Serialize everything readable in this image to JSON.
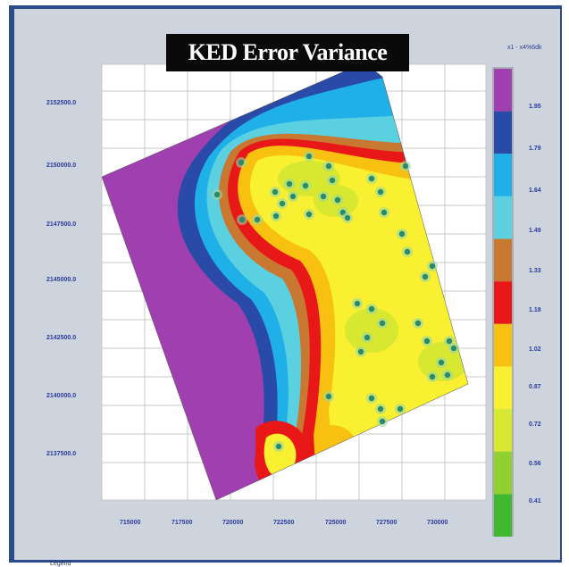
{
  "window": {
    "title": "KED Error Variance",
    "footer_label": "Legend"
  },
  "legend": {
    "title": "x1 - x4%6dk",
    "items": [
      {
        "label": "1.95",
        "color": "#a040b0"
      },
      {
        "label": "1.79",
        "color": "#2a4aa8"
      },
      {
        "label": "1.64",
        "color": "#20b0e8"
      },
      {
        "label": "1.49",
        "color": "#5ad0e0"
      },
      {
        "label": "1.33",
        "color": "#c87830"
      },
      {
        "label": "1.18",
        "color": "#e81818"
      },
      {
        "label": "1.02",
        "color": "#f8c010"
      },
      {
        "label": "0.87",
        "color": "#f8f030"
      },
      {
        "label": "0.72",
        "color": "#d8e830"
      },
      {
        "label": "0.56",
        "color": "#90d030"
      },
      {
        "label": "0.41",
        "color": "#40b830"
      }
    ]
  },
  "axes": {
    "y_ticks": [
      "2152500.0",
      "2150000.0",
      "2147500.0",
      "2145000.0",
      "2142500.0",
      "2140000.0",
      "2137500.0"
    ],
    "x_ticks": [
      "715000",
      "717500",
      "720000",
      "722500",
      "725000",
      "727500",
      "730000"
    ]
  },
  "colors": {
    "frame": "#2a4a8c",
    "background": "#cdd4dd",
    "grid": "#c8c8c8",
    "well": "#2a8a70"
  }
}
